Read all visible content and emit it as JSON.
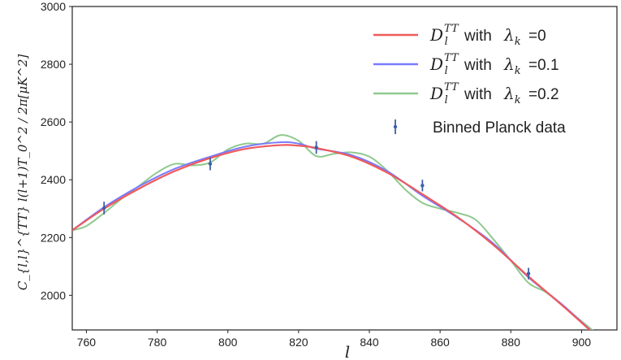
{
  "chart_data": {
    "type": "line",
    "xlabel": "l",
    "ylabel": "C_{l,l}^{TT} l(l+1)T_0^2 / 2π[μK^2]",
    "xlim": [
      756,
      910
    ],
    "ylim": [
      1880,
      3000
    ],
    "x_ticks": [
      "760",
      "780",
      "800",
      "820",
      "840",
      "860",
      "880",
      "900"
    ],
    "y_ticks": [
      "2000",
      "2200",
      "2400",
      "2600",
      "2800",
      "3000"
    ],
    "legend_position": "top-right",
    "series": [
      {
        "name": "D_l^TT with λ_k =0",
        "legend": {
          "prefix": "with",
          "param_value": "=0"
        },
        "color": "#ef5a5a",
        "x": [
          756,
          765,
          775,
          785,
          795,
          805,
          815,
          820,
          825,
          835,
          845,
          855,
          865,
          875,
          885,
          895,
          905
        ],
        "y": [
          2225,
          2300,
          2370,
          2430,
          2475,
          2507,
          2520,
          2518,
          2510,
          2480,
          2425,
          2350,
          2270,
          2175,
          2065,
          1960,
          1850
        ]
      },
      {
        "name": "D_l^TT with λ_k =0.1",
        "legend": {
          "prefix": "with",
          "param_value": "=0.1"
        },
        "color": "#7a7aff",
        "x": [
          756,
          765,
          775,
          785,
          795,
          805,
          815,
          820,
          825,
          835,
          845,
          855,
          865,
          875,
          885,
          895,
          905
        ],
        "y": [
          2225,
          2305,
          2378,
          2438,
          2480,
          2515,
          2530,
          2525,
          2508,
          2485,
          2430,
          2345,
          2268,
          2180,
          2062,
          1963,
          1850
        ]
      },
      {
        "name": "D_l^TT with λ_k =0.2",
        "legend": {
          "prefix": "with",
          "param_value": "=0.2"
        },
        "color": "#8fc98f",
        "x": [
          756,
          760,
          765,
          770,
          775,
          780,
          785,
          790,
          795,
          800,
          805,
          810,
          815,
          820,
          825,
          830,
          835,
          840,
          845,
          850,
          855,
          860,
          865,
          870,
          875,
          880,
          885,
          890,
          895,
          900,
          905
        ],
        "y": [
          2225,
          2240,
          2285,
          2335,
          2380,
          2425,
          2455,
          2450,
          2460,
          2505,
          2525,
          2525,
          2555,
          2535,
          2482,
          2490,
          2495,
          2480,
          2432,
          2368,
          2320,
          2300,
          2285,
          2262,
          2195,
          2120,
          2043,
          2010,
          1960,
          1910,
          1860
        ]
      }
    ],
    "data_points": {
      "name": "Binned Planck data",
      "color": "#3b5fa8",
      "points": [
        {
          "x": 765,
          "y": 2302,
          "err": 22
        },
        {
          "x": 795,
          "y": 2455,
          "err": 22
        },
        {
          "x": 825,
          "y": 2512,
          "err": 22
        },
        {
          "x": 855,
          "y": 2380,
          "err": 20
        },
        {
          "x": 885,
          "y": 2075,
          "err": 20
        }
      ]
    }
  }
}
